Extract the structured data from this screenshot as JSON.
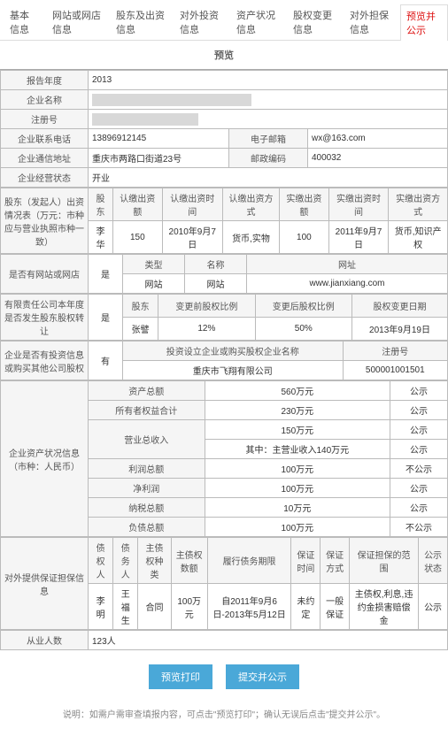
{
  "tabs": {
    "items": [
      "基本信息",
      "网站或网店信息",
      "股东及出资信息",
      "对外投资信息",
      "资产状况信息",
      "股权变更信息",
      "对外担保信息",
      "预览并公示"
    ],
    "active": 7
  },
  "previewTitle": "预览",
  "basic": {
    "yearLabel": "报告年度",
    "year": "2013",
    "nameLabel": "企业名称",
    "name": "████████████████████████████████",
    "regNoLabel": "注册号",
    "regNo": "████████████████████",
    "phoneLabel": "企业联系电话",
    "phone": "13896912145",
    "emailLabel": "电子邮箱",
    "email": "wx@163.com",
    "addrLabel": "企业通信地址",
    "addr": "重庆市两路口街道23号",
    "zipLabel": "邮政编码",
    "zip": "400032",
    "statusLabel": "企业经营状态",
    "status": "开业"
  },
  "invest": {
    "header": "股东（发起人）出资情况表（万元：市种应与营业执照市种一致）",
    "cols": [
      "股东",
      "认缴出资额",
      "认缴出资时间",
      "认缴出资方式",
      "实缴出资额",
      "实缴出资时间",
      "实缴出资方式"
    ],
    "row": [
      "李华",
      "150",
      "2010年9月7日",
      "货币,实物",
      "100",
      "2011年9月7日",
      "货币,知识产权"
    ]
  },
  "site": {
    "header": "是否有网站或网店",
    "value": "是",
    "cols": [
      "类型",
      "名称",
      "网址"
    ],
    "row": [
      "网站",
      "网站",
      "www.jianxiang.com"
    ]
  },
  "equity": {
    "header": "有限责任公司本年度是否发生股东股权转让",
    "value": "是",
    "cols": [
      "股东",
      "变更前股权比例",
      "变更后股权比例",
      "股权变更日期"
    ],
    "row": [
      "张譬",
      "12%",
      "50%",
      "2013年9月19日"
    ]
  },
  "outInvest": {
    "header": "企业是否有投资信息或购买其他公司股权",
    "value": "有",
    "cols": [
      "投资设立企业或购买股权企业名称",
      "注册号"
    ],
    "row": [
      "重庆市飞翔有限公司",
      "500001001501"
    ]
  },
  "assets": {
    "header": "企业资产状况信息（市种：人民币）",
    "rows": [
      [
        "资产总额",
        "560万元",
        "公示"
      ],
      [
        "所有者权益合计",
        "230万元",
        "公示"
      ],
      [
        "营业总收入",
        "150万元",
        "公示"
      ],
      [
        "",
        "其中：主营业收入140万元",
        "公示"
      ],
      [
        "利润总额",
        "100万元",
        "不公示"
      ],
      [
        "净利润",
        "100万元",
        "公示"
      ],
      [
        "纳税总额",
        "10万元",
        "公示"
      ],
      [
        "负债总额",
        "100万元",
        "不公示"
      ]
    ]
  },
  "guarantee": {
    "header": "对外提供保证担保信息",
    "cols": [
      "债权人",
      "债务人",
      "主债权种类",
      "主债权数额",
      "履行债务期限",
      "保证时间",
      "保证方式",
      "保证担保的范围",
      "公示状态"
    ],
    "row": [
      "李明",
      "王福生",
      "合同",
      "100万元",
      "自2011年9月6日-2013年5月12日",
      "未约定",
      "一般保证",
      "主债权,利息,违约金损害赔偿金",
      "公示"
    ]
  },
  "people": {
    "label": "从业人数",
    "value": "123人"
  },
  "buttons": {
    "print": "预览打印",
    "submit": "提交并公示"
  },
  "note": "说明：如需户需审查填报内容，可点击\"预览打印\"；确认无误后点击\"提交并公示\"。"
}
